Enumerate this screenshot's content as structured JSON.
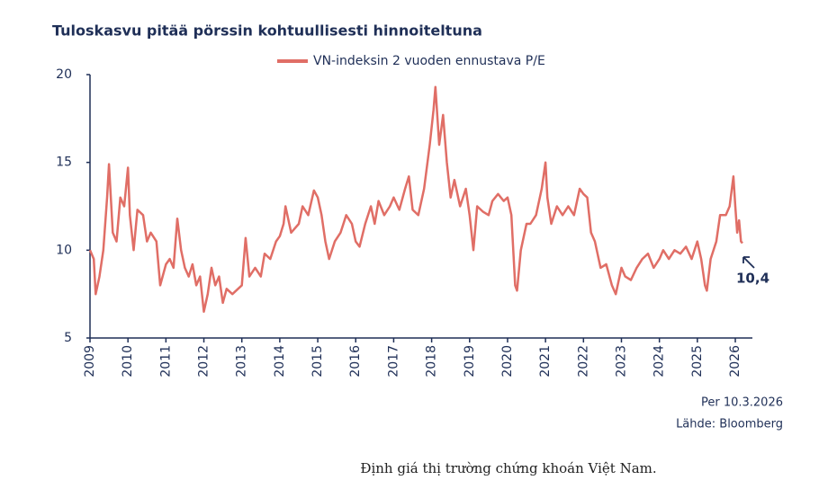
{
  "chart_data": {
    "type": "line",
    "title": "Tuloskasvu pitää pörssin kohtuullisesti hinnoiteltuna",
    "series": [
      {
        "name": "VN-indeksin 2 vuoden ennustava P/E",
        "color": "#e06e66",
        "x": [
          2009.0,
          2009.1,
          2009.15,
          2009.25,
          2009.35,
          2009.45,
          2009.5,
          2009.6,
          2009.7,
          2009.8,
          2009.9,
          2010.0,
          2010.05,
          2010.15,
          2010.25,
          2010.4,
          2010.5,
          2010.6,
          2010.75,
          2010.85,
          2011.0,
          2011.1,
          2011.2,
          2011.3,
          2011.4,
          2011.5,
          2011.6,
          2011.7,
          2011.8,
          2011.9,
          2012.0,
          2012.1,
          2012.2,
          2012.3,
          2012.4,
          2012.5,
          2012.6,
          2012.75,
          2012.9,
          2013.0,
          2013.1,
          2013.2,
          2013.35,
          2013.5,
          2013.6,
          2013.75,
          2013.9,
          2014.0,
          2014.1,
          2014.15,
          2014.3,
          2014.5,
          2014.6,
          2014.75,
          2014.9,
          2015.0,
          2015.1,
          2015.2,
          2015.3,
          2015.45,
          2015.6,
          2015.75,
          2015.9,
          2016.0,
          2016.1,
          2016.25,
          2016.4,
          2016.5,
          2016.6,
          2016.75,
          2016.9,
          2017.0,
          2017.15,
          2017.3,
          2017.4,
          2017.5,
          2017.65,
          2017.8,
          2017.95,
          2018.05,
          2018.1,
          2018.2,
          2018.3,
          2018.4,
          2018.5,
          2018.6,
          2018.75,
          2018.9,
          2019.0,
          2019.1,
          2019.2,
          2019.35,
          2019.5,
          2019.6,
          2019.75,
          2019.9,
          2020.0,
          2020.1,
          2020.2,
          2020.25,
          2020.35,
          2020.5,
          2020.6,
          2020.75,
          2020.9,
          2021.0,
          2021.05,
          2021.15,
          2021.3,
          2021.45,
          2021.6,
          2021.75,
          2021.9,
          2022.0,
          2022.1,
          2022.2,
          2022.3,
          2022.45,
          2022.6,
          2022.75,
          2022.85,
          2023.0,
          2023.1,
          2023.25,
          2023.4,
          2023.55,
          2023.7,
          2023.85,
          2024.0,
          2024.1,
          2024.25,
          2024.4,
          2024.55,
          2024.7,
          2024.85,
          2025.0,
          2025.1,
          2025.2,
          2025.25,
          2025.35,
          2025.5,
          2025.6,
          2025.75,
          2025.85,
          2025.95,
          2026.0,
          2026.05,
          2026.1,
          2026.15,
          2026.19
        ],
        "values": [
          10,
          9.5,
          7.5,
          8.5,
          10,
          13,
          14.9,
          11,
          10.5,
          13,
          12.5,
          14.7,
          12,
          10,
          12.3,
          12,
          10.5,
          11,
          10.5,
          8,
          9.2,
          9.5,
          9,
          11.8,
          10,
          9,
          8.5,
          9.2,
          8,
          8.5,
          6.5,
          7.5,
          9,
          8,
          8.5,
          7,
          7.8,
          7.5,
          7.8,
          8,
          10.7,
          8.5,
          9,
          8.5,
          9.8,
          9.5,
          10.5,
          10.8,
          11.5,
          12.5,
          11,
          11.5,
          12.5,
          12,
          13.4,
          13,
          12,
          10.5,
          9.5,
          10.5,
          11,
          12,
          11.5,
          10.5,
          10.2,
          11.5,
          12.5,
          11.5,
          12.8,
          12,
          12.5,
          13,
          12.3,
          13.5,
          14.2,
          12.3,
          12,
          13.5,
          16,
          18,
          19.3,
          16,
          17.7,
          15,
          13,
          14,
          12.5,
          13.5,
          12,
          10,
          12.5,
          12.2,
          12,
          12.8,
          13.2,
          12.8,
          13,
          12,
          8,
          7.7,
          10,
          11.5,
          11.5,
          12,
          13.5,
          15,
          13,
          11.5,
          12.5,
          12,
          12.5,
          12,
          13.5,
          13.2,
          13,
          11,
          10.5,
          9,
          9.2,
          8,
          7.5,
          9,
          8.5,
          8.3,
          9,
          9.5,
          9.8,
          9,
          9.5,
          10,
          9.5,
          10,
          9.8,
          10.2,
          9.5,
          10.5,
          9.5,
          8,
          7.7,
          9.5,
          10.5,
          12,
          12,
          12.5,
          14.2,
          12.5,
          11,
          11.7,
          10.5,
          10.4
        ]
      }
    ],
    "annotation": "10,4",
    "xlim": [
      2009,
      2026.45
    ],
    "xticks": [
      2009,
      2010,
      2011,
      2012,
      2013,
      2014,
      2015,
      2016,
      2017,
      2018,
      2019,
      2020,
      2021,
      2022,
      2023,
      2024,
      2025,
      2026
    ],
    "ylim": [
      5,
      20
    ],
    "yticks": [
      5,
      10,
      15,
      20
    ],
    "notes": [
      "Per 10.3.2026",
      "Lähde: Bloomberg"
    ],
    "caption": "Định giá thị trường chứng khoán Việt Nam."
  }
}
